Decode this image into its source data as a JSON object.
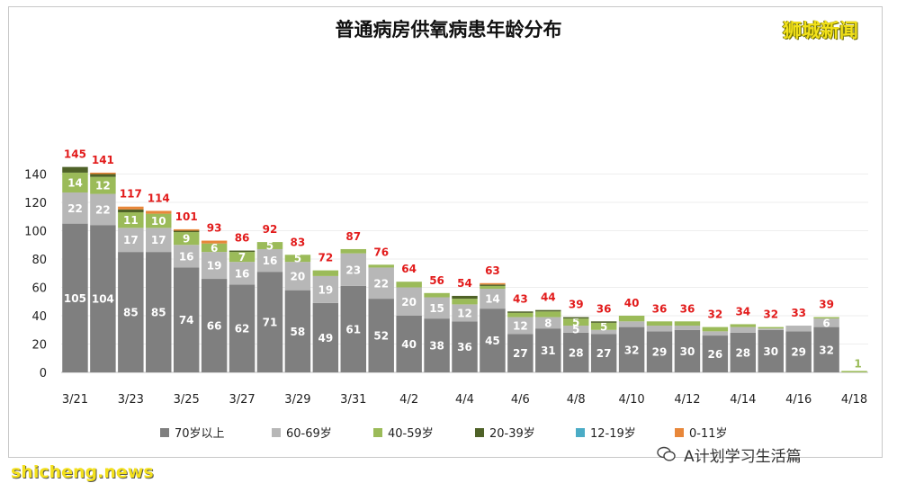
{
  "header": {
    "title": "普通病房供氧病患年龄分布",
    "brand": "狮城新闻"
  },
  "footer": {
    "wechat_account": "A计划学习生活篇",
    "watermark_left": "shicheng.news"
  },
  "colors": {
    "age_70_plus": "#7f7f7f",
    "age_60_69": "#b7b7b7",
    "age_40_59": "#9bbb59",
    "age_20_39": "#4f6228",
    "age_12_19": "#4bacc6",
    "age_0_11": "#e8873a",
    "total_label": "#e21b1b"
  },
  "chart_data": {
    "type": "bar",
    "stacked": true,
    "title": "普通病房供氧病患年龄分布",
    "xlabel": "",
    "ylabel": "",
    "ylim": [
      0,
      150
    ],
    "yticks": [
      0,
      20,
      40,
      60,
      80,
      100,
      120,
      140
    ],
    "x_tick_labels": [
      "3/21",
      "3/23",
      "3/25",
      "3/27",
      "3/29",
      "3/31",
      "4/2",
      "4/4",
      "4/6",
      "4/8",
      "4/10",
      "4/12",
      "4/14",
      "4/16",
      "4/18"
    ],
    "categories": [
      "3/21",
      "3/22",
      "3/23",
      "3/24",
      "3/25",
      "3/26",
      "3/27",
      "3/28",
      "3/29",
      "3/30",
      "3/31",
      "4/1",
      "4/2",
      "4/3",
      "4/4",
      "4/5",
      "4/6",
      "4/7",
      "4/8",
      "4/9",
      "4/10",
      "4/11",
      "4/12",
      "4/13",
      "4/14",
      "4/15",
      "4/16",
      "4/17",
      "4/18"
    ],
    "totals": [
      145,
      141,
      117,
      114,
      101,
      93,
      86,
      92,
      83,
      72,
      87,
      76,
      64,
      56,
      54,
      63,
      43,
      44,
      39,
      36,
      40,
      36,
      36,
      32,
      34,
      32,
      33,
      39,
      1
    ],
    "legend_position": "bottom",
    "series": [
      {
        "name": "70岁以上",
        "values": [
          105,
          104,
          85,
          85,
          74,
          66,
          62,
          71,
          58,
          49,
          61,
          52,
          40,
          38,
          36,
          45,
          27,
          31,
          28,
          27,
          32,
          29,
          30,
          26,
          28,
          30,
          29,
          32,
          0
        ]
      },
      {
        "name": "60-69岁",
        "values": [
          22,
          22,
          17,
          17,
          16,
          19,
          16,
          16,
          20,
          19,
          23,
          22,
          20,
          15,
          12,
          14,
          12,
          8,
          5,
          3,
          4,
          4,
          3,
          3,
          4,
          1,
          4,
          6,
          0
        ]
      },
      {
        "name": "40-59岁",
        "values": [
          14,
          12,
          11,
          10,
          9,
          6,
          7,
          5,
          5,
          4,
          3,
          2,
          4,
          3,
          4,
          2,
          3,
          4,
          5,
          5,
          4,
          3,
          3,
          3,
          2,
          1,
          0,
          1,
          1
        ]
      },
      {
        "name": "20-39岁",
        "values": [
          4,
          2,
          2,
          0,
          1,
          0,
          1,
          0,
          0,
          0,
          0,
          0,
          0,
          0,
          2,
          1,
          1,
          1,
          1,
          1,
          0,
          0,
          0,
          0,
          0,
          0,
          0,
          0,
          0
        ]
      },
      {
        "name": "12-19岁",
        "values": [
          0,
          0,
          0,
          0,
          0,
          0,
          0,
          0,
          0,
          0,
          0,
          0,
          0,
          0,
          0,
          0,
          0,
          0,
          0,
          0,
          0,
          0,
          0,
          0,
          0,
          0,
          0,
          0,
          0
        ]
      },
      {
        "name": "0-11岁",
        "values": [
          0,
          1,
          2,
          2,
          1,
          2,
          0,
          0,
          0,
          0,
          0,
          0,
          0,
          0,
          0,
          1,
          0,
          0,
          0,
          0,
          0,
          0,
          0,
          0,
          0,
          0,
          0,
          0,
          0
        ]
      }
    ]
  }
}
